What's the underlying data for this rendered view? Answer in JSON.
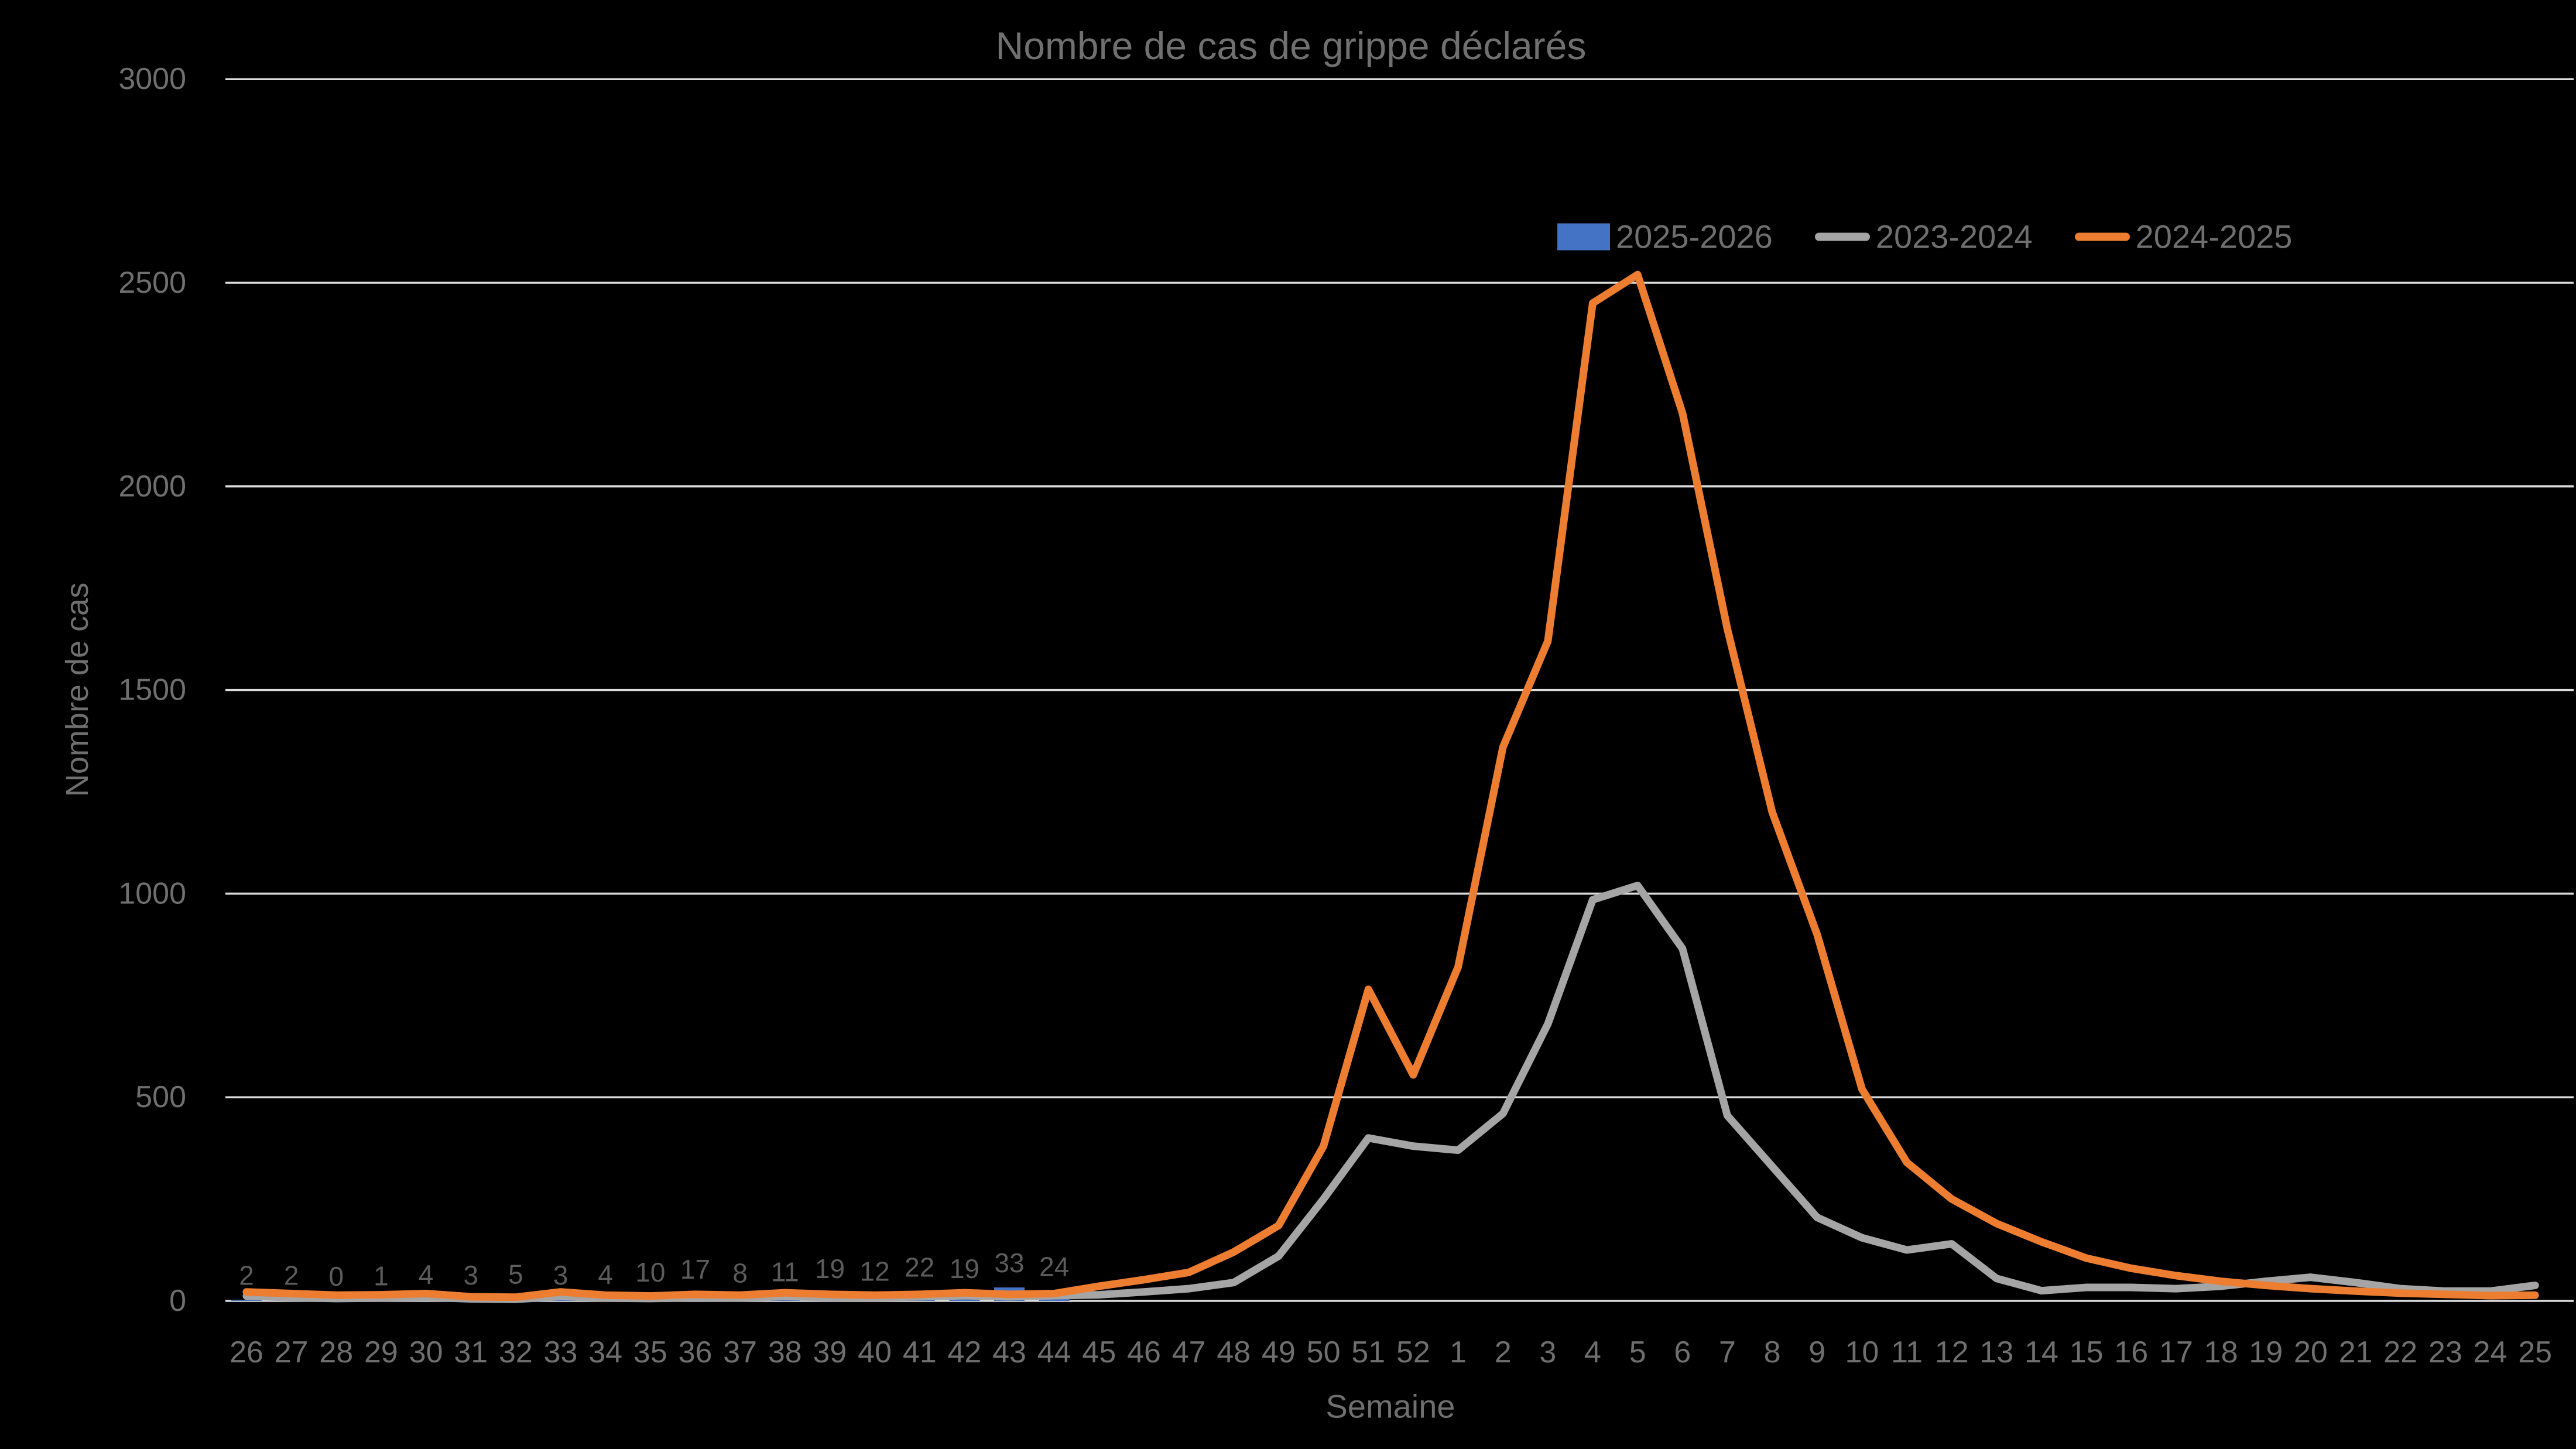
{
  "chart_data": {
    "type": "combo-bar-line",
    "title": "Nombre de cas de grippe déclarés",
    "xlabel": "Semaine",
    "ylabel": "Nombre de cas",
    "categories": [
      "26",
      "27",
      "28",
      "29",
      "30",
      "31",
      "32",
      "33",
      "34",
      "35",
      "36",
      "37",
      "38",
      "39",
      "40",
      "41",
      "42",
      "43",
      "44",
      "45",
      "46",
      "47",
      "48",
      "49",
      "50",
      "51",
      "52",
      "1",
      "2",
      "3",
      "4",
      "5",
      "6",
      "7",
      "8",
      "9",
      "10",
      "11",
      "12",
      "13",
      "14",
      "15",
      "16",
      "17",
      "18",
      "19",
      "20",
      "21",
      "22",
      "23",
      "24",
      "25"
    ],
    "yticks": [
      0,
      500,
      1000,
      1500,
      2000,
      2500,
      3000
    ],
    "ylim": [
      0,
      3000
    ],
    "grid": true,
    "legend_position": "top-right",
    "series": [
      {
        "name": "2025-2026",
        "type": "bar",
        "color": "#4472C4",
        "data_labels": true,
        "values": [
          2,
          2,
          0,
          1,
          4,
          3,
          5,
          3,
          4,
          10,
          17,
          8,
          11,
          19,
          12,
          22,
          19,
          33,
          24,
          null,
          null,
          null,
          null,
          null,
          null,
          null,
          null,
          null,
          null,
          null,
          null,
          null,
          null,
          null,
          null,
          null,
          null,
          null,
          null,
          null,
          null,
          null,
          null,
          null,
          null,
          null,
          null,
          null,
          null,
          null,
          null,
          null
        ]
      },
      {
        "name": "2023-2024",
        "type": "line",
        "color": "#A5A5A5",
        "values": [
          12,
          8,
          6,
          7,
          9,
          5,
          4,
          11,
          7,
          6,
          8,
          7,
          11,
          8,
          8,
          10,
          13,
          10,
          13,
          15,
          22,
          30,
          45,
          110,
          250,
          400,
          380,
          370,
          460,
          680,
          985,
          1020,
          865,
          455,
          330,
          205,
          155,
          125,
          140,
          55,
          25,
          33,
          33,
          30,
          36,
          48,
          58,
          45,
          30,
          24,
          24,
          38
        ]
      },
      {
        "name": "2024-2025",
        "type": "line",
        "color": "#ED7D31",
        "values": [
          22,
          18,
          14,
          15,
          18,
          10,
          9,
          22,
          14,
          12,
          16,
          14,
          20,
          16,
          14,
          16,
          20,
          16,
          18,
          36,
          52,
          70,
          120,
          185,
          380,
          765,
          555,
          820,
          1360,
          1620,
          2450,
          2520,
          2180,
          1650,
          1200,
          900,
          520,
          340,
          250,
          190,
          145,
          105,
          80,
          62,
          48,
          38,
          30,
          24,
          19,
          16,
          13,
          14
        ]
      }
    ]
  },
  "legend": {
    "items": [
      {
        "label": "2025-2026",
        "swatch": "square",
        "color": "#4472C4"
      },
      {
        "label": "2023-2024",
        "swatch": "line",
        "color": "#A5A5A5"
      },
      {
        "label": "2024-2025",
        "swatch": "line",
        "color": "#ED7D31"
      }
    ]
  },
  "colors": {
    "background": "#000000",
    "gridline": "#DCDCDC",
    "axis_text": "#6F6F6F",
    "title_text": "#707070",
    "data_label_text": "#5C5C5C"
  }
}
